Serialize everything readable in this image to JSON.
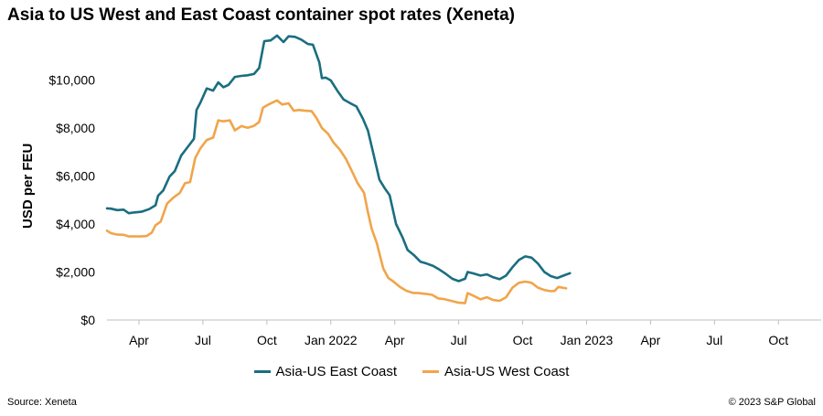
{
  "colors": {
    "east": "#1a6e80",
    "west": "#f0a54a",
    "axis": "#bfbfbf"
  },
  "title": "Asia to US West and East Coast container spot rates (Xeneta)",
  "source": "Source: Xeneta",
  "copyright": "© 2023 S&P Global",
  "chart_data": {
    "type": "line",
    "title": "Asia to US West and East Coast container spot rates (Xeneta)",
    "xlabel": "",
    "ylabel": "USD per FEU",
    "ylim": [
      0,
      12000
    ],
    "xlim": [
      2021.125,
      2023.917
    ],
    "grid": false,
    "legend_position": "bottom",
    "x_ticks": [
      {
        "x": 2021.25,
        "label": "Apr"
      },
      {
        "x": 2021.5,
        "label": "Jul"
      },
      {
        "x": 2021.75,
        "label": "Oct"
      },
      {
        "x": 2022.0,
        "label": "Jan 2022"
      },
      {
        "x": 2022.25,
        "label": "Apr"
      },
      {
        "x": 2022.5,
        "label": "Jul"
      },
      {
        "x": 2022.75,
        "label": "Oct"
      },
      {
        "x": 2023.0,
        "label": "Jan 2023"
      },
      {
        "x": 2023.25,
        "label": "Apr"
      },
      {
        "x": 2023.5,
        "label": "Jul"
      },
      {
        "x": 2023.75,
        "label": "Oct"
      }
    ],
    "y_ticks": [
      {
        "y": 0,
        "label": "$0"
      },
      {
        "y": 2000,
        "label": "$2,000"
      },
      {
        "y": 4000,
        "label": "$4,000"
      },
      {
        "y": 6000,
        "label": "$6,000"
      },
      {
        "y": 8000,
        "label": "$8,000"
      },
      {
        "y": 10000,
        "label": "$10,000"
      }
    ],
    "series": [
      {
        "name": "Asia-US East Coast",
        "points": [
          [
            2021.125,
            4650
          ],
          [
            2021.14,
            4640
          ],
          [
            2021.165,
            4580
          ],
          [
            2021.19,
            4600
          ],
          [
            2021.21,
            4450
          ],
          [
            2021.23,
            4480
          ],
          [
            2021.26,
            4510
          ],
          [
            2021.29,
            4620
          ],
          [
            2021.315,
            4780
          ],
          [
            2021.325,
            5180
          ],
          [
            2021.345,
            5400
          ],
          [
            2021.37,
            5980
          ],
          [
            2021.39,
            6200
          ],
          [
            2021.415,
            6850
          ],
          [
            2021.44,
            7200
          ],
          [
            2021.465,
            7550
          ],
          [
            2021.475,
            8750
          ],
          [
            2021.49,
            9050
          ],
          [
            2021.515,
            9650
          ],
          [
            2021.54,
            9560
          ],
          [
            2021.56,
            9900
          ],
          [
            2021.58,
            9700
          ],
          [
            2021.6,
            9800
          ],
          [
            2021.625,
            10130
          ],
          [
            2021.65,
            10170
          ],
          [
            2021.675,
            10200
          ],
          [
            2021.7,
            10250
          ],
          [
            2021.72,
            10500
          ],
          [
            2021.74,
            11620
          ],
          [
            2021.765,
            11650
          ],
          [
            2021.79,
            11850
          ],
          [
            2021.815,
            11580
          ],
          [
            2021.835,
            11820
          ],
          [
            2021.86,
            11800
          ],
          [
            2021.885,
            11680
          ],
          [
            2021.91,
            11500
          ],
          [
            2021.93,
            11470
          ],
          [
            2021.955,
            10730
          ],
          [
            2021.965,
            10080
          ],
          [
            2021.98,
            10100
          ],
          [
            2022.0,
            9980
          ],
          [
            2022.025,
            9560
          ],
          [
            2022.05,
            9190
          ],
          [
            2022.075,
            9040
          ],
          [
            2022.1,
            8900
          ],
          [
            2022.125,
            8400
          ],
          [
            2022.145,
            7900
          ],
          [
            2022.165,
            7000
          ],
          [
            2022.19,
            5850
          ],
          [
            2022.21,
            5500
          ],
          [
            2022.23,
            5200
          ],
          [
            2022.255,
            4000
          ],
          [
            2022.28,
            3450
          ],
          [
            2022.3,
            2920
          ],
          [
            2022.325,
            2700
          ],
          [
            2022.35,
            2430
          ],
          [
            2022.375,
            2350
          ],
          [
            2022.4,
            2250
          ],
          [
            2022.425,
            2100
          ],
          [
            2022.45,
            1920
          ],
          [
            2022.475,
            1720
          ],
          [
            2022.5,
            1620
          ],
          [
            2022.525,
            1720
          ],
          [
            2022.535,
            2000
          ],
          [
            2022.56,
            1930
          ],
          [
            2022.585,
            1850
          ],
          [
            2022.61,
            1900
          ],
          [
            2022.635,
            1780
          ],
          [
            2022.66,
            1700
          ],
          [
            2022.685,
            1850
          ],
          [
            2022.71,
            2200
          ],
          [
            2022.735,
            2500
          ],
          [
            2022.76,
            2650
          ],
          [
            2022.785,
            2600
          ],
          [
            2022.81,
            2350
          ],
          [
            2022.835,
            2000
          ],
          [
            2022.86,
            1830
          ],
          [
            2022.885,
            1750
          ],
          [
            2022.91,
            1850
          ],
          [
            2022.935,
            1950
          ]
        ]
      },
      {
        "name": "Asia-US West Coast",
        "points": [
          [
            2021.125,
            3720
          ],
          [
            2021.14,
            3620
          ],
          [
            2021.165,
            3560
          ],
          [
            2021.19,
            3550
          ],
          [
            2021.21,
            3480
          ],
          [
            2021.23,
            3480
          ],
          [
            2021.26,
            3480
          ],
          [
            2021.28,
            3500
          ],
          [
            2021.3,
            3640
          ],
          [
            2021.315,
            3950
          ],
          [
            2021.335,
            4100
          ],
          [
            2021.36,
            4850
          ],
          [
            2021.385,
            5100
          ],
          [
            2021.41,
            5300
          ],
          [
            2021.43,
            5700
          ],
          [
            2021.45,
            5750
          ],
          [
            2021.47,
            6750
          ],
          [
            2021.49,
            7150
          ],
          [
            2021.515,
            7500
          ],
          [
            2021.54,
            7600
          ],
          [
            2021.56,
            8320
          ],
          [
            2021.58,
            8280
          ],
          [
            2021.605,
            8320
          ],
          [
            2021.625,
            7900
          ],
          [
            2021.65,
            8080
          ],
          [
            2021.675,
            8010
          ],
          [
            2021.7,
            8090
          ],
          [
            2021.72,
            8250
          ],
          [
            2021.735,
            8850
          ],
          [
            2021.76,
            9000
          ],
          [
            2021.79,
            9150
          ],
          [
            2021.81,
            8980
          ],
          [
            2021.835,
            9030
          ],
          [
            2021.855,
            8720
          ],
          [
            2021.875,
            8750
          ],
          [
            2021.9,
            8720
          ],
          [
            2021.925,
            8700
          ],
          [
            2021.945,
            8400
          ],
          [
            2021.965,
            8000
          ],
          [
            2021.99,
            7750
          ],
          [
            2022.01,
            7400
          ],
          [
            2022.035,
            7100
          ],
          [
            2022.06,
            6700
          ],
          [
            2022.085,
            6150
          ],
          [
            2022.105,
            5700
          ],
          [
            2022.13,
            5300
          ],
          [
            2022.145,
            4500
          ],
          [
            2022.16,
            3800
          ],
          [
            2022.18,
            3200
          ],
          [
            2022.205,
            2150
          ],
          [
            2022.225,
            1750
          ],
          [
            2022.245,
            1600
          ],
          [
            2022.27,
            1380
          ],
          [
            2022.295,
            1220
          ],
          [
            2022.32,
            1130
          ],
          [
            2022.345,
            1120
          ],
          [
            2022.37,
            1090
          ],
          [
            2022.395,
            1050
          ],
          [
            2022.42,
            900
          ],
          [
            2022.445,
            870
          ],
          [
            2022.47,
            800
          ],
          [
            2022.5,
            720
          ],
          [
            2022.525,
            700
          ],
          [
            2022.535,
            1120
          ],
          [
            2022.56,
            1000
          ],
          [
            2022.585,
            860
          ],
          [
            2022.61,
            950
          ],
          [
            2022.635,
            830
          ],
          [
            2022.66,
            800
          ],
          [
            2022.685,
            950
          ],
          [
            2022.71,
            1350
          ],
          [
            2022.735,
            1550
          ],
          [
            2022.76,
            1600
          ],
          [
            2022.785,
            1550
          ],
          [
            2022.81,
            1350
          ],
          [
            2022.835,
            1250
          ],
          [
            2022.86,
            1200
          ],
          [
            2022.875,
            1210
          ],
          [
            2022.89,
            1380
          ],
          [
            2022.905,
            1350
          ],
          [
            2022.92,
            1320
          ]
        ]
      }
    ]
  }
}
